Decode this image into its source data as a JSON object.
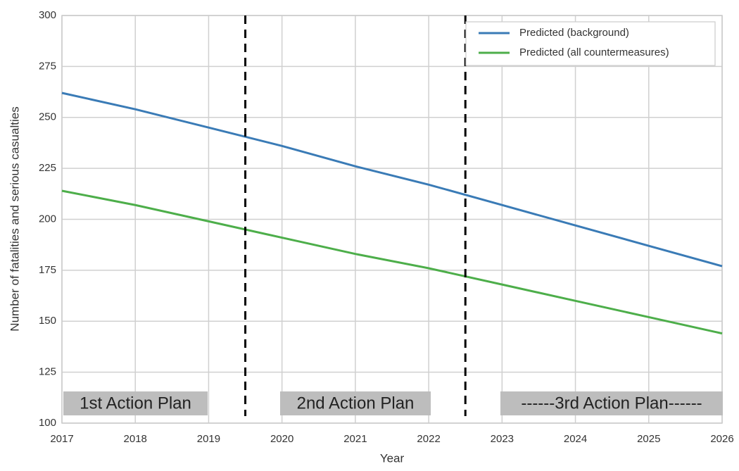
{
  "chart_data": {
    "type": "line",
    "x": [
      2017,
      2018,
      2019,
      2020,
      2021,
      2022,
      2023,
      2024,
      2025,
      2026
    ],
    "series": [
      {
        "name": "Predicted (background)",
        "color": "#3a7bb6",
        "values": [
          262,
          254,
          245,
          236,
          226,
          217,
          207,
          197,
          187,
          177
        ]
      },
      {
        "name": "Predicted (all countermeasures)",
        "color": "#4dae4a",
        "values": [
          214,
          207,
          199,
          191,
          183,
          176,
          168,
          160,
          152,
          144
        ]
      }
    ],
    "xlabel": "Year",
    "ylabel": "Number of fatalities and serious casualties",
    "xlim": [
      2017,
      2026
    ],
    "xticks": [
      2017,
      2018,
      2019,
      2020,
      2021,
      2022,
      2023,
      2024,
      2025,
      2026
    ],
    "ylim": [
      100,
      300
    ],
    "yticks": [
      100,
      125,
      150,
      175,
      200,
      225,
      250,
      275,
      300
    ],
    "vlines": [
      2019.5,
      2022.5
    ],
    "annotations": [
      "1st Action Plan",
      "2nd Action Plan",
      "------3rd Action Plan------"
    ],
    "grid": true,
    "legend": "upper right"
  }
}
